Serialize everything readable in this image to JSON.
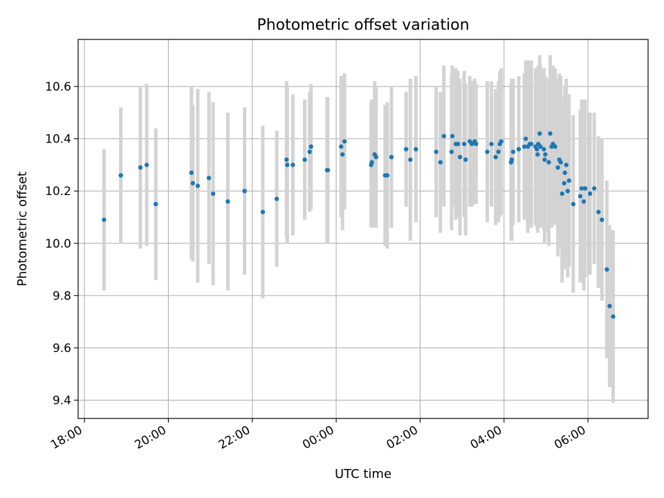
{
  "chart_data": {
    "type": "scatter",
    "title": "Photometric offset variation",
    "xlabel": "UTC time",
    "ylabel": "Photometric offset",
    "x_tick_labels": [
      "18:00",
      "20:00",
      "22:00",
      "00:00",
      "02:00",
      "04:00",
      "06:00"
    ],
    "x_ticks": [
      "18:00",
      "20:00",
      "22:00",
      "00:00",
      "02:00",
      "04:00",
      "06:00"
    ],
    "xlim": [
      "17:51",
      "07:26"
    ],
    "x_day_offsets": [
      0,
      0,
      0,
      1,
      1,
      1,
      1
    ],
    "y_ticks": [
      9.4,
      9.6,
      9.8,
      10.0,
      10.2,
      10.4,
      10.6
    ],
    "y_tick_labels": [
      "9.4",
      "9.6",
      "9.8",
      "10.0",
      "10.2",
      "10.4",
      "10.6"
    ],
    "ylim": [
      9.33,
      10.78
    ],
    "grid": true,
    "legend": "none",
    "marker_color": "#1f77b4",
    "errorbar_color": "#d3d3d3",
    "points": [
      {
        "x": "18:28",
        "y": 10.09,
        "err": 0.27
      },
      {
        "x": "18:52",
        "y": 10.26,
        "err": 0.26
      },
      {
        "x": "19:20",
        "y": 10.29,
        "err": 0.31
      },
      {
        "x": "19:29",
        "y": 10.3,
        "err": 0.31
      },
      {
        "x": "19:42",
        "y": 10.15,
        "err": 0.29
      },
      {
        "x": "20:33",
        "y": 10.27,
        "err": 0.33
      },
      {
        "x": "20:35",
        "y": 10.23,
        "err": 0.3
      },
      {
        "x": "20:42",
        "y": 10.22,
        "err": 0.37
      },
      {
        "x": "20:58",
        "y": 10.25,
        "err": 0.33
      },
      {
        "x": "21:04",
        "y": 10.19,
        "err": 0.35
      },
      {
        "x": "21:25",
        "y": 10.16,
        "err": 0.34
      },
      {
        "x": "21:49",
        "y": 10.2,
        "err": 0.32
      },
      {
        "x": "22:15",
        "y": 10.12,
        "err": 0.33
      },
      {
        "x": "22:35",
        "y": 10.17,
        "err": 0.26
      },
      {
        "x": "22:49",
        "y": 10.32,
        "err": 0.3
      },
      {
        "x": "22:50",
        "y": 10.3,
        "err": 0.3
      },
      {
        "x": "22:58",
        "y": 10.3,
        "err": 0.27
      },
      {
        "x": "23:15",
        "y": 10.32,
        "err": 0.23
      },
      {
        "x": "23:22",
        "y": 10.35,
        "err": 0.23
      },
      {
        "x": "23:24",
        "y": 10.37,
        "err": 0.24
      },
      {
        "x": "23:47",
        "y": 10.28,
        "err": 0.28
      },
      {
        "x": "23:48",
        "y": 10.28,
        "err": 0.28
      },
      {
        "x": "00:07",
        "y": 10.37,
        "err": 0.27
      },
      {
        "x": "00:09",
        "y": 10.34,
        "err": 0.29
      },
      {
        "x": "00:12",
        "y": 10.39,
        "err": 0.26
      },
      {
        "x": "00:50",
        "y": 10.3,
        "err": 0.24
      },
      {
        "x": "00:51",
        "y": 10.31,
        "err": 0.24
      },
      {
        "x": "00:55",
        "y": 10.34,
        "err": 0.28
      },
      {
        "x": "00:57",
        "y": 10.33,
        "err": 0.27
      },
      {
        "x": "01:10",
        "y": 10.26,
        "err": 0.27
      },
      {
        "x": "01:13",
        "y": 10.26,
        "err": 0.28
      },
      {
        "x": "01:19",
        "y": 10.33,
        "err": 0.27
      },
      {
        "x": "01:40",
        "y": 10.36,
        "err": 0.22
      },
      {
        "x": "01:46",
        "y": 10.32,
        "err": 0.31
      },
      {
        "x": "01:54",
        "y": 10.36,
        "err": 0.28
      },
      {
        "x": "02:23",
        "y": 10.35,
        "err": 0.25
      },
      {
        "x": "02:29",
        "y": 10.31,
        "err": 0.27
      },
      {
        "x": "02:34",
        "y": 10.41,
        "err": 0.27
      },
      {
        "x": "02:45",
        "y": 10.35,
        "err": 0.3
      },
      {
        "x": "02:46",
        "y": 10.41,
        "err": 0.27
      },
      {
        "x": "02:51",
        "y": 10.38,
        "err": 0.29
      },
      {
        "x": "02:54",
        "y": 10.38,
        "err": 0.28
      },
      {
        "x": "02:57",
        "y": 10.33,
        "err": 0.3
      },
      {
        "x": "03:03",
        "y": 10.38,
        "err": 0.28
      },
      {
        "x": "03:05",
        "y": 10.32,
        "err": 0.29
      },
      {
        "x": "03:11",
        "y": 10.39,
        "err": 0.25
      },
      {
        "x": "03:14",
        "y": 10.38,
        "err": 0.24
      },
      {
        "x": "03:18",
        "y": 10.39,
        "err": 0.24
      },
      {
        "x": "03:20",
        "y": 10.38,
        "err": 0.23
      },
      {
        "x": "03:36",
        "y": 10.35,
        "err": 0.27
      },
      {
        "x": "03:42",
        "y": 10.38,
        "err": 0.24
      },
      {
        "x": "03:48",
        "y": 10.33,
        "err": 0.26
      },
      {
        "x": "03:52",
        "y": 10.35,
        "err": 0.27
      },
      {
        "x": "03:54",
        "y": 10.38,
        "err": 0.28
      },
      {
        "x": "03:56",
        "y": 10.39,
        "err": 0.28
      },
      {
        "x": "04:10",
        "y": 10.31,
        "err": 0.3
      },
      {
        "x": "04:11",
        "y": 10.32,
        "err": 0.31
      },
      {
        "x": "04:13",
        "y": 10.35,
        "err": 0.28
      },
      {
        "x": "04:21",
        "y": 10.36,
        "err": 0.28
      },
      {
        "x": "04:29",
        "y": 10.37,
        "err": 0.28
      },
      {
        "x": "04:31",
        "y": 10.4,
        "err": 0.3
      },
      {
        "x": "04:34",
        "y": 10.37,
        "err": 0.33
      },
      {
        "x": "04:37",
        "y": 10.38,
        "err": 0.29
      },
      {
        "x": "04:39",
        "y": 10.38,
        "err": 0.32
      },
      {
        "x": "04:45",
        "y": 10.37,
        "err": 0.3
      },
      {
        "x": "04:47",
        "y": 10.36,
        "err": 0.3
      },
      {
        "x": "04:48",
        "y": 10.34,
        "err": 0.3
      },
      {
        "x": "04:49",
        "y": 10.38,
        "err": 0.3
      },
      {
        "x": "04:51",
        "y": 10.42,
        "err": 0.3
      },
      {
        "x": "04:52",
        "y": 10.37,
        "err": 0.31
      },
      {
        "x": "04:57",
        "y": 10.36,
        "err": 0.31
      },
      {
        "x": "04:58",
        "y": 10.32,
        "err": 0.32
      },
      {
        "x": "04:59",
        "y": 10.34,
        "err": 0.3
      },
      {
        "x": "05:04",
        "y": 10.31,
        "err": 0.32
      },
      {
        "x": "05:06",
        "y": 10.42,
        "err": 0.3
      },
      {
        "x": "05:08",
        "y": 10.37,
        "err": 0.31
      },
      {
        "x": "05:10",
        "y": 10.38,
        "err": 0.3
      },
      {
        "x": "05:13",
        "y": 10.37,
        "err": 0.3
      },
      {
        "x": "05:17",
        "y": 10.29,
        "err": 0.34
      },
      {
        "x": "05:19",
        "y": 10.32,
        "err": 0.33
      },
      {
        "x": "05:21",
        "y": 10.31,
        "err": 0.33
      },
      {
        "x": "05:23",
        "y": 10.19,
        "err": 0.34
      },
      {
        "x": "05:26",
        "y": 10.23,
        "err": 0.33
      },
      {
        "x": "05:27",
        "y": 10.27,
        "err": 0.33
      },
      {
        "x": "05:29",
        "y": 10.3,
        "err": 0.33
      },
      {
        "x": "05:31",
        "y": 10.2,
        "err": 0.33
      },
      {
        "x": "05:33",
        "y": 10.24,
        "err": 0.33
      },
      {
        "x": "05:39",
        "y": 10.15,
        "err": 0.34
      },
      {
        "x": "05:49",
        "y": 10.18,
        "err": 0.33
      },
      {
        "x": "05:51",
        "y": 10.21,
        "err": 0.34
      },
      {
        "x": "05:54",
        "y": 10.16,
        "err": 0.34
      },
      {
        "x": "05:56",
        "y": 10.21,
        "err": 0.34
      },
      {
        "x": "06:03",
        "y": 10.19,
        "err": 0.31
      },
      {
        "x": "06:09",
        "y": 10.21,
        "err": 0.29
      },
      {
        "x": "06:15",
        "y": 10.12,
        "err": 0.29
      },
      {
        "x": "06:20",
        "y": 10.09,
        "err": 0.31
      },
      {
        "x": "06:27",
        "y": 9.9,
        "err": 0.34
      },
      {
        "x": "06:31",
        "y": 9.76,
        "err": 0.31
      },
      {
        "x": "06:36",
        "y": 9.72,
        "err": 0.33
      }
    ]
  }
}
